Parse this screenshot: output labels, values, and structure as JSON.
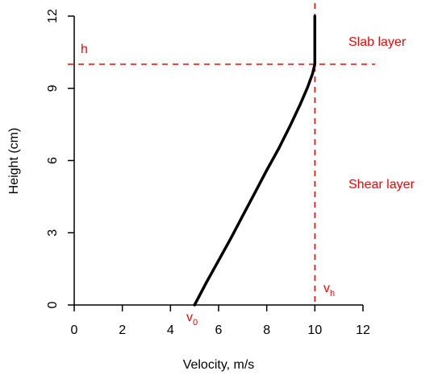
{
  "chart_data": {
    "type": "line",
    "xlabel": "Velocity, m/s",
    "ylabel": "Height (cm)",
    "xlim": [
      0,
      12
    ],
    "ylim": [
      0,
      12
    ],
    "xticks": [
      "0",
      "2",
      "4",
      "6",
      "8",
      "10",
      "12"
    ],
    "yticks": [
      "0",
      "3",
      "6",
      "9",
      "12"
    ],
    "grid": false,
    "series": [
      {
        "x": [
          5.0,
          5.5,
          6.0,
          6.5,
          7.0,
          7.5,
          8.0,
          8.5,
          9.0,
          9.4,
          9.7,
          9.9,
          10.0,
          10.0,
          10.0
        ],
        "y": [
          0.0,
          0.95,
          1.85,
          2.75,
          3.7,
          4.65,
          5.6,
          6.5,
          7.5,
          8.35,
          9.05,
          9.6,
          10.0,
          11.0,
          12.0
        ],
        "color": "#000000"
      }
    ],
    "reference_lines": [
      {
        "orientation": "horizontal",
        "value": 10,
        "color": "#ff0000",
        "style": "dashed"
      },
      {
        "orientation": "vertical",
        "value": 10,
        "color": "#ff0000",
        "style": "dashed"
      }
    ],
    "annotations": {
      "h": "h",
      "v0_main": "v",
      "v0_sub": "0",
      "vh_main": "v",
      "vh_sub": "h",
      "slab": "Slab layer",
      "shear": "Shear layer"
    },
    "annotation_color": "#ff0000"
  }
}
